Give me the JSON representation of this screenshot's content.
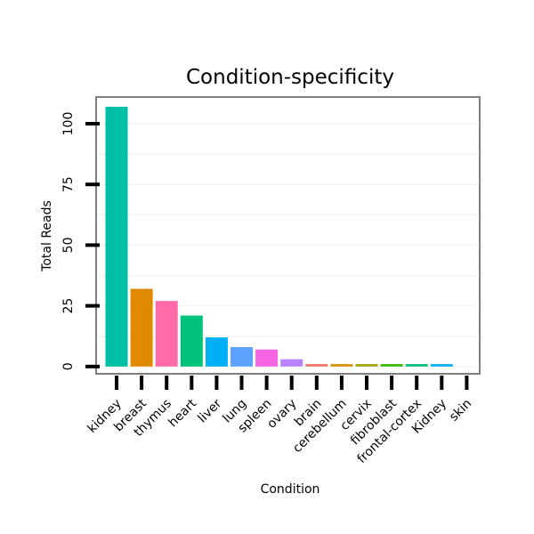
{
  "chart_data": {
    "type": "bar",
    "title": "Condition-specificity",
    "xlabel": "Condition",
    "ylabel": "Total Reads",
    "ylim": [
      -3,
      111
    ],
    "yticks": [
      0,
      25,
      50,
      75,
      100
    ],
    "grid": true,
    "legend": "none",
    "categories": [
      "kidney",
      "breast",
      "thymus",
      "heart",
      "liver",
      "lung",
      "spleen",
      "ovary",
      "brain",
      "cerebellum",
      "cervix",
      "fibroblast",
      "frontal-cortex",
      "Kidney",
      "skin"
    ],
    "values": [
      107,
      32,
      27,
      21,
      12,
      8,
      7,
      3,
      1,
      1,
      1,
      1,
      1,
      1,
      0
    ],
    "colors": [
      "#00BFA4",
      "#E08A00",
      "#FF6BA8",
      "#00C27A",
      "#00B0F6",
      "#5DA2FF",
      "#F564E3",
      "#B983FF",
      "#F8766D",
      "#D89000",
      "#A3A500",
      "#39B600",
      "#00BF7D",
      "#00B0F6",
      "#E76BF3"
    ]
  }
}
